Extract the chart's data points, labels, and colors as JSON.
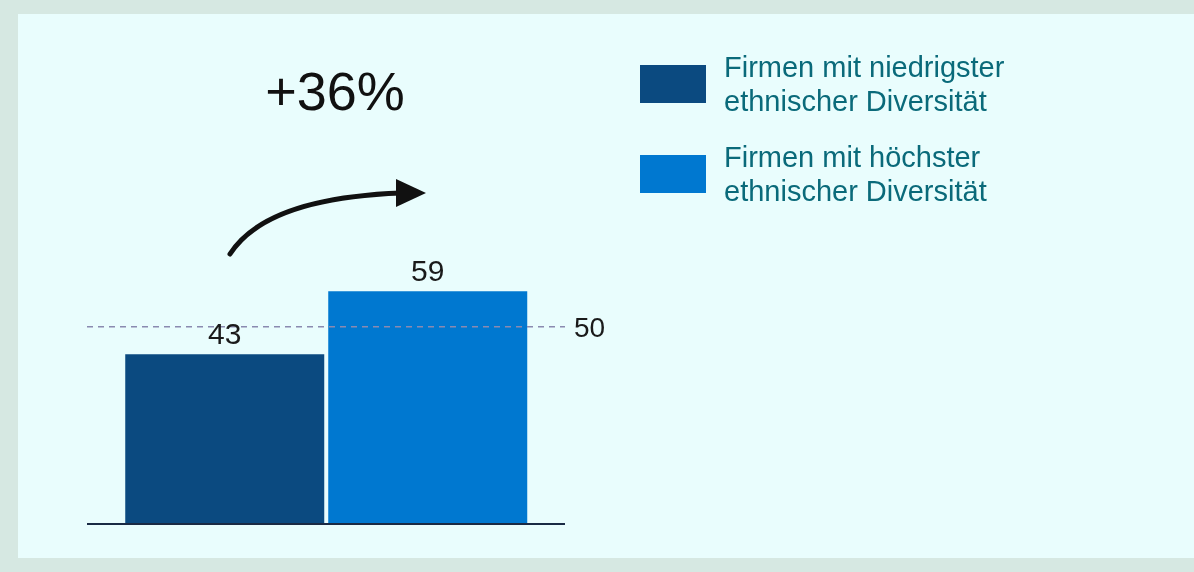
{
  "chart_data": {
    "type": "bar",
    "categories": [
      null
    ],
    "series": [
      {
        "name": "Firmen mit niedrigster ethnischer Diversität",
        "color": "#0b4a80",
        "values": [
          43
        ]
      },
      {
        "name": "Firmen mit höchster ethnischer Diversität",
        "color": "#0078d0",
        "values": [
          59
        ]
      }
    ],
    "data_labels": true,
    "legend": "top right",
    "tick_labels": false,
    "ref_lines": [
      {
        "axis": "y",
        "value": 50,
        "label": "50",
        "color": "#8a8ab0",
        "line_style": "dashed"
      }
    ],
    "annotations": [
      "+36%"
    ]
  }
}
